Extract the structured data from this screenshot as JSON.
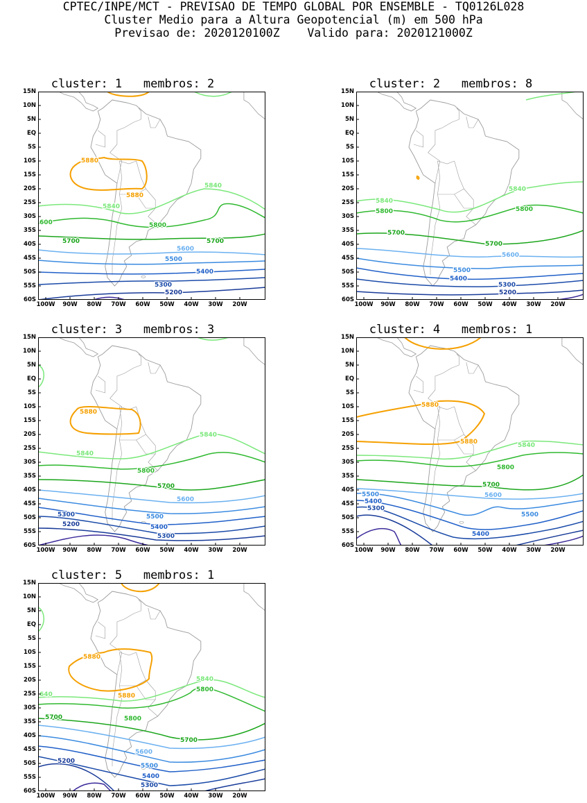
{
  "header": {
    "line1": "CPTEC/INPE/MCT - PREVISAO DE TEMPO GLOBAL POR ENSEMBLE - TQ0126L028",
    "line2": "Cluster Medio para a Altura Geopotencial (m) em 500 hPa",
    "line3": "Previsao de: 2020120100Z    Valido para: 2020121000Z"
  },
  "axes": {
    "lat_labels": [
      "15N",
      "10N",
      "5N",
      "EQ",
      "5S",
      "10S",
      "15S",
      "20S",
      "25S",
      "30S",
      "35S",
      "40S",
      "45S",
      "50S",
      "55S",
      "60S"
    ],
    "lon_labels": [
      "100W",
      "90W",
      "80W",
      "70W",
      "60W",
      "50W",
      "40W",
      "30W",
      "20W"
    ]
  },
  "colors": {
    "c5880": "#f5a000",
    "c5840": "#7ae87a",
    "c5800": "#2eb82e",
    "c5700": "#1aa51a",
    "c5600": "#6ab0f0",
    "c5500": "#3a8ae0",
    "c5400": "#1f5fc8",
    "c5300": "#1a4aa8",
    "c5200": "#183a98",
    "c5100": "#3a2a9a",
    "land": "#9a9a9a"
  },
  "panels": [
    {
      "title": "cluster: 1   membros: 2",
      "labels": [
        {
          "text": "5880",
          "level": "c5880",
          "x": 62,
          "y": 102
        },
        {
          "text": "5880",
          "level": "c5880",
          "x": 127,
          "y": 152
        },
        {
          "text": "5840",
          "level": "c5840",
          "x": 240,
          "y": 138
        },
        {
          "text": "5840",
          "level": "c5840",
          "x": 93,
          "y": 168
        },
        {
          "text": "5800",
          "level": "c5800",
          "x": 160,
          "y": 195
        },
        {
          "text": "600",
          "level": "c5800",
          "x": 2,
          "y": 191
        },
        {
          "text": "5700",
          "level": "c5700",
          "x": 35,
          "y": 218
        },
        {
          "text": "5700",
          "level": "c5700",
          "x": 243,
          "y": 218
        },
        {
          "text": "5600",
          "level": "c5600",
          "x": 200,
          "y": 229
        },
        {
          "text": "5500",
          "level": "c5500",
          "x": 183,
          "y": 244
        },
        {
          "text": "5400",
          "level": "c5400",
          "x": 228,
          "y": 262
        },
        {
          "text": "5300",
          "level": "c5300",
          "x": 168,
          "y": 281
        },
        {
          "text": "5200",
          "level": "c5200",
          "x": 183,
          "y": 292
        }
      ]
    },
    {
      "title": "cluster: 2   membros: 8",
      "labels": [
        {
          "text": "5840",
          "level": "c5840",
          "x": 220,
          "y": 143
        },
        {
          "text": "5840",
          "level": "c5840",
          "x": 28,
          "y": 160
        },
        {
          "text": "5800",
          "level": "c5800",
          "x": 230,
          "y": 172
        },
        {
          "text": "5800",
          "level": "c5800",
          "x": 28,
          "y": 175
        },
        {
          "text": "5700",
          "level": "c5700",
          "x": 45,
          "y": 206
        },
        {
          "text": "5700",
          "level": "c5700",
          "x": 186,
          "y": 222
        },
        {
          "text": "5600",
          "level": "c5600",
          "x": 210,
          "y": 238
        },
        {
          "text": "5500",
          "level": "c5500",
          "x": 140,
          "y": 260
        },
        {
          "text": "5400",
          "level": "c5400",
          "x": 135,
          "y": 272
        },
        {
          "text": "5300",
          "level": "c5300",
          "x": 205,
          "y": 281
        },
        {
          "text": "5200",
          "level": "c5200",
          "x": 206,
          "y": 292
        }
      ]
    },
    {
      "title": "cluster: 3   membros: 3",
      "labels": [
        {
          "text": "5880",
          "level": "c5880",
          "x": 60,
          "y": 110
        },
        {
          "text": "5840",
          "level": "c5840",
          "x": 233,
          "y": 143
        },
        {
          "text": "5840",
          "level": "c5840",
          "x": 55,
          "y": 170
        },
        {
          "text": "5800",
          "level": "c5800",
          "x": 143,
          "y": 195
        },
        {
          "text": "5700",
          "level": "c5700",
          "x": 172,
          "y": 217
        },
        {
          "text": "5600",
          "level": "c5600",
          "x": 200,
          "y": 236
        },
        {
          "text": "5500",
          "level": "c5500",
          "x": 156,
          "y": 261
        },
        {
          "text": "5300",
          "level": "c5300",
          "x": 28,
          "y": 258
        },
        {
          "text": "5200",
          "level": "c5200",
          "x": 35,
          "y": 272
        },
        {
          "text": "5400",
          "level": "c5400",
          "x": 162,
          "y": 276
        },
        {
          "text": "5300",
          "level": "c5300",
          "x": 172,
          "y": 289
        }
      ]
    },
    {
      "title": "cluster: 4   membros: 1",
      "labels": [
        {
          "text": "5880",
          "level": "c5880",
          "x": 94,
          "y": 100
        },
        {
          "text": "5880",
          "level": "c5880",
          "x": 150,
          "y": 153
        },
        {
          "text": "5840",
          "level": "c5840",
          "x": 233,
          "y": 158
        },
        {
          "text": "5800",
          "level": "c5800",
          "x": 203,
          "y": 190
        },
        {
          "text": "5700",
          "level": "c5700",
          "x": 182,
          "y": 215
        },
        {
          "text": "5600",
          "level": "c5600",
          "x": 185,
          "y": 230
        },
        {
          "text": "5500",
          "level": "c5500",
          "x": 8,
          "y": 229
        },
        {
          "text": "5400",
          "level": "c5400",
          "x": 12,
          "y": 239
        },
        {
          "text": "5300",
          "level": "c5300",
          "x": 16,
          "y": 249
        },
        {
          "text": "5500",
          "level": "c5500",
          "x": 238,
          "y": 258
        },
        {
          "text": "5400",
          "level": "c5400",
          "x": 167,
          "y": 286
        }
      ]
    },
    {
      "title": "cluster: 5   membros: 1",
      "labels": [
        {
          "text": "5880",
          "level": "c5880",
          "x": 65,
          "y": 109
        },
        {
          "text": "5880",
          "level": "c5880",
          "x": 115,
          "y": 165
        },
        {
          "text": "5840",
          "level": "c5840",
          "x": 228,
          "y": 141
        },
        {
          "text": "5800",
          "level": "c5800",
          "x": 228,
          "y": 156
        },
        {
          "text": "640",
          "level": "c5840",
          "x": 2,
          "y": 163
        },
        {
          "text": "5700",
          "level": "c5700",
          "x": 10,
          "y": 196
        },
        {
          "text": "5800",
          "level": "c5800",
          "x": 124,
          "y": 198
        },
        {
          "text": "5700",
          "level": "c5700",
          "x": 205,
          "y": 229
        },
        {
          "text": "5600",
          "level": "c5600",
          "x": 140,
          "y": 246
        },
        {
          "text": "5200",
          "level": "c5200",
          "x": 28,
          "y": 259
        },
        {
          "text": "5500",
          "level": "c5500",
          "x": 148,
          "y": 266
        },
        {
          "text": "5400",
          "level": "c5400",
          "x": 150,
          "y": 281
        },
        {
          "text": "5300",
          "level": "c5300",
          "x": 148,
          "y": 294
        }
      ]
    }
  ]
}
